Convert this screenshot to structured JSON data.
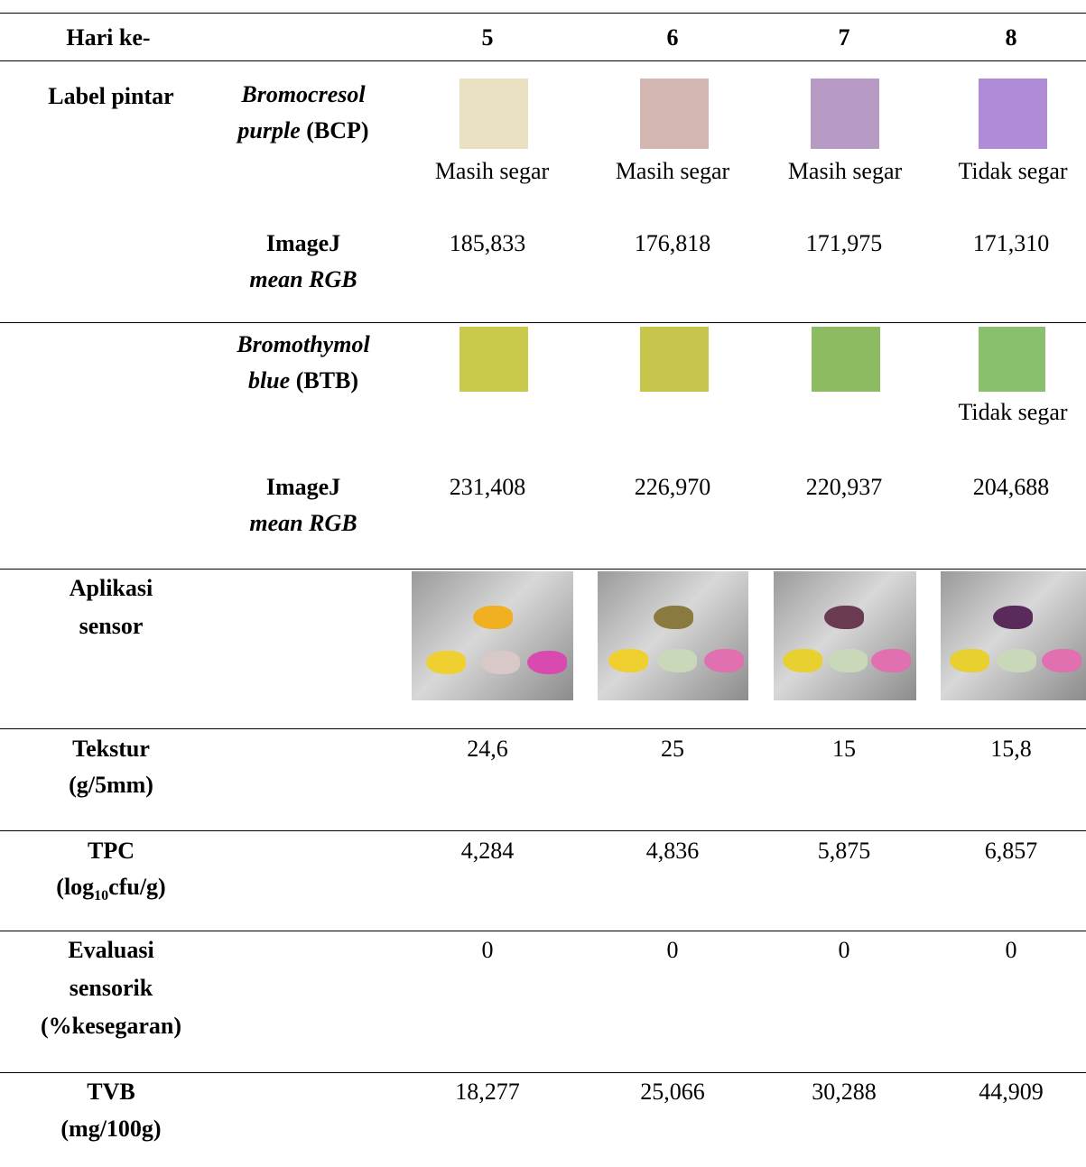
{
  "table": {
    "header": {
      "label": "Hari ke-",
      "days": [
        "5",
        "6",
        "7",
        "8"
      ]
    },
    "smart_label": {
      "label": "Label pintar",
      "bcp": {
        "name": [
          "Bromocresol",
          "purple"
        ],
        "abbr": "(BCP)",
        "status": [
          "Masih segar",
          "Masih segar",
          "Masih segar",
          "Tidak segar"
        ],
        "imagej_label": [
          "ImageJ",
          "mean RGB"
        ],
        "imagej": [
          "185,833",
          "176,818",
          "171,975",
          "171,310"
        ]
      },
      "btb": {
        "name": [
          "Bromothymol",
          "blue"
        ],
        "abbr": "(BTB)",
        "status": [
          null,
          null,
          null,
          "Tidak segar"
        ],
        "imagej_label": [
          "ImageJ",
          "mean RGB"
        ],
        "imagej": [
          "231,408",
          "226,970",
          "220,937",
          "204,688"
        ]
      }
    },
    "sensor_app": {
      "label": [
        "Aplikasi",
        "sensor"
      ]
    },
    "texture": {
      "label": [
        "Tekstur",
        "(g/5mm)"
      ],
      "values": [
        "24,6",
        "25",
        "15",
        "15,8"
      ]
    },
    "tpc": {
      "label": [
        "TPC"
      ],
      "unit": [
        "(log",
        "10",
        "cfu/g)"
      ],
      "values": [
        "4,284",
        "4,836",
        "5,875",
        "6,857"
      ]
    },
    "sensory": {
      "label": [
        "Evaluasi",
        "sensorik",
        "(%kesegaran)"
      ],
      "values": [
        "0",
        "0",
        "0",
        "0"
      ]
    },
    "tvb": {
      "label": [
        "TVB",
        "(mg/100g)"
      ],
      "values": [
        "18,277",
        "25,066",
        "30,288",
        "44,909"
      ]
    }
  }
}
